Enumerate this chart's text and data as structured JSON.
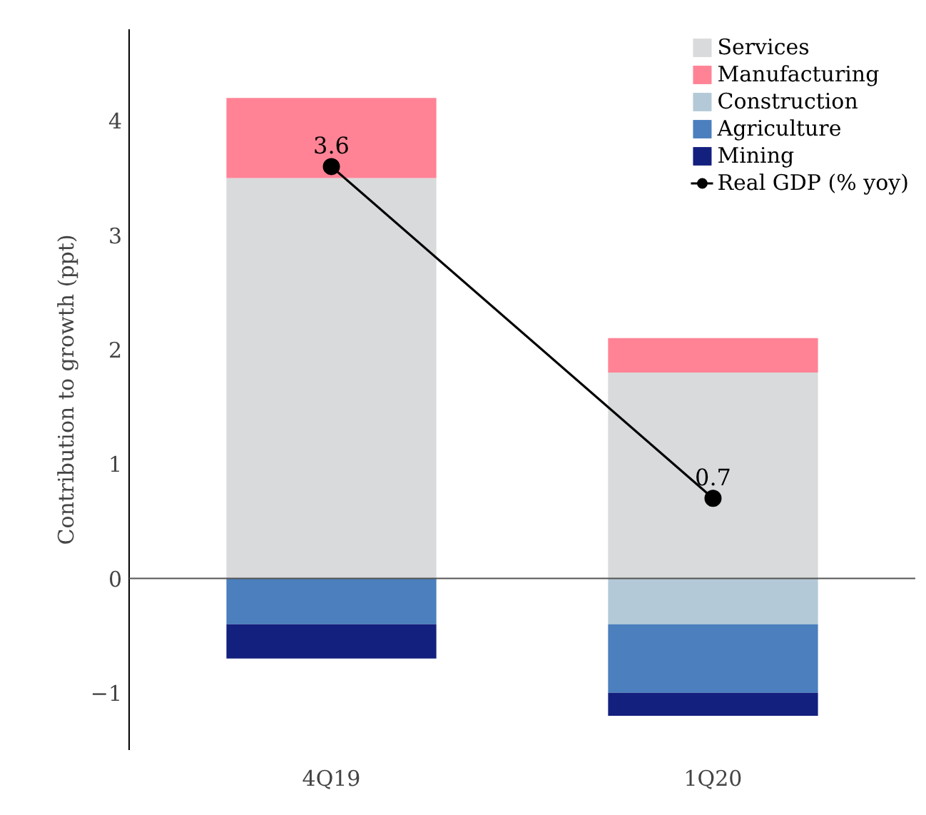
{
  "chart_data": {
    "type": "bar",
    "stacked": true,
    "ylabel": "Contribution to growth (ppt)",
    "categories": [
      "4Q19",
      "1Q20"
    ],
    "series": [
      {
        "name": "Services",
        "color": "#d9dadb",
        "values": [
          3.5,
          1.8
        ]
      },
      {
        "name": "Manufacturing",
        "color": "#ff8395",
        "values": [
          0.7,
          0.3
        ]
      },
      {
        "name": "Construction",
        "color": "#b3c9d7",
        "values": [
          0,
          -0.4
        ]
      },
      {
        "name": "Agriculture",
        "color": "#4b7fbd",
        "values": [
          -0.4,
          -0.6
        ]
      },
      {
        "name": "Mining",
        "color": "#14207e",
        "values": [
          -0.3,
          -0.2
        ]
      },
      {
        "name": "Real GDP (% yoy)",
        "type": "line",
        "color": "#000000",
        "values": [
          3.6,
          0.7
        ],
        "value_labels": [
          "3.6",
          "0.7"
        ]
      }
    ],
    "marker": "circle",
    "line_style": "solid",
    "ylim": [
      -1.5,
      4.8
    ],
    "yticks": [
      {
        "value": -1,
        "label": "−1"
      },
      0,
      1,
      2,
      3,
      4
    ],
    "ref_lines": [
      {
        "axis": "y",
        "value": 0,
        "color": "#555555"
      }
    ],
    "grid": false,
    "legend": "top right"
  }
}
